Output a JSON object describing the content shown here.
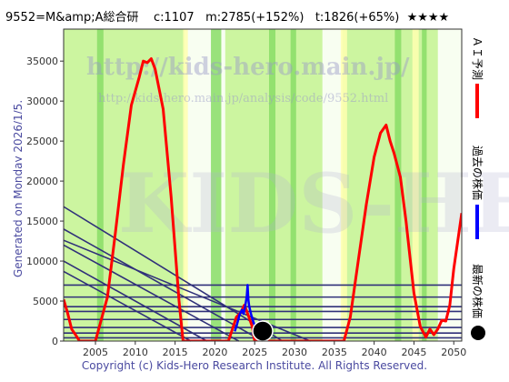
{
  "header": {
    "code_name": "9552=M&amp;A総合研",
    "c_value": "c:1107",
    "m_value": "m:2785(+152%)",
    "t_value": "t:1826(+65%)",
    "stars": "★★★★"
  },
  "side_label": "Generated on Monday 2026/1/5.",
  "footer": "Copyright (c) Kids-Hero Research Institute. All Rights Reserved.",
  "watermark": {
    "url_large": "http://kids-hero.main.jp/",
    "url_small": "http://kids-hero.main.jp/analysis/code/9552.html",
    "logo": "KIDS-HERO"
  },
  "legend": {
    "ai": "ＡＩ予測",
    "past": "過去の株価",
    "latest": "最新の株価"
  },
  "colors": {
    "ai": "#ff0000",
    "past": "#0000ff",
    "latest": "#000000",
    "band_light": "#ccf5a0",
    "band_green": "#88dd66",
    "band_yellow": "#ffffb0",
    "trend_lines": "#30307a"
  },
  "chart_data": {
    "type": "line",
    "xlim": [
      2001,
      2051
    ],
    "ylim": [
      0,
      39000
    ],
    "xticks": [
      "2005",
      "2010",
      "2015",
      "2020",
      "2025",
      "2030",
      "2035",
      "2040",
      "2045",
      "2050"
    ],
    "yticks": [
      "0",
      "5000",
      "10000",
      "15000",
      "20000",
      "25000",
      "30000",
      "35000"
    ],
    "ytick_values": [
      0,
      5000,
      10000,
      15000,
      20000,
      25000,
      30000,
      35000
    ],
    "xtick_values": [
      2005,
      2010,
      2015,
      2020,
      2025,
      2030,
      2035,
      2040,
      2045,
      2050
    ],
    "series": [
      {
        "name": "ＡＩ予測",
        "x": [
          2001,
          2001.5,
          2002,
          2002.5,
          2003,
          2005,
          2006.5,
          2007.5,
          2008.5,
          2009.5,
          2010.5,
          2011,
          2011.5,
          2012,
          2012.5,
          2013.5,
          2014.5,
          2015.5,
          2016,
          2021.7,
          2022.2,
          2022.7,
          2023.2,
          2023.7,
          2024.2,
          2024.7,
          2025,
          2036.2,
          2037,
          2038,
          2039,
          2040,
          2040.8,
          2041.5,
          2042,
          2042.5,
          2043.3,
          2044,
          2045,
          2045.8,
          2046.5,
          2047,
          2047.5,
          2048,
          2048.5,
          2049,
          2049.5,
          2050,
          2050.5,
          2051
        ],
        "y": [
          5200,
          3500,
          1500,
          800,
          0,
          0,
          5500,
          13500,
          22000,
          29500,
          33000,
          35000,
          34800,
          35300,
          34000,
          29000,
          18000,
          5000,
          0,
          0,
          1500,
          3000,
          3500,
          4500,
          3200,
          1800,
          0,
          0,
          3000,
          10000,
          17000,
          23000,
          26000,
          27000,
          25000,
          23500,
          20500,
          15000,
          6000,
          1800,
          500,
          1500,
          800,
          1500,
          2600,
          2500,
          4500,
          9000,
          12500,
          16000
        ]
      },
      {
        "name": "過去の株価",
        "x": [
          2022.5,
          2022.8,
          2023.1,
          2023.4,
          2023.6,
          2023.8,
          2024.0,
          2024.1,
          2024.2,
          2024.3,
          2024.5,
          2024.7,
          2024.9,
          2025.1,
          2025.4
        ],
        "y": [
          1200,
          2200,
          3300,
          3900,
          3400,
          4300,
          5600,
          7000,
          5200,
          4400,
          3500,
          2800,
          2200,
          1800,
          1300
        ]
      }
    ],
    "latest_point": {
      "x": 2026,
      "y": 1107
    },
    "trend_lines": [
      {
        "x": [
          2001,
          2028.5
        ],
        "y": [
          16800,
          0
        ]
      },
      {
        "x": [
          2001,
          2026
        ],
        "y": [
          14000,
          0
        ]
      },
      {
        "x": [
          2001,
          2032
        ],
        "y": [
          12600,
          0
        ]
      },
      {
        "x": [
          2001,
          2023
        ],
        "y": [
          12000,
          0
        ]
      },
      {
        "x": [
          2001,
          2019
        ],
        "y": [
          10000,
          0
        ]
      },
      {
        "x": [
          2001,
          2017
        ],
        "y": [
          8700,
          0
        ]
      }
    ],
    "hlines": [
      7000,
      5500,
      4300,
      3700,
      2700,
      1700,
      1000,
      400
    ]
  }
}
